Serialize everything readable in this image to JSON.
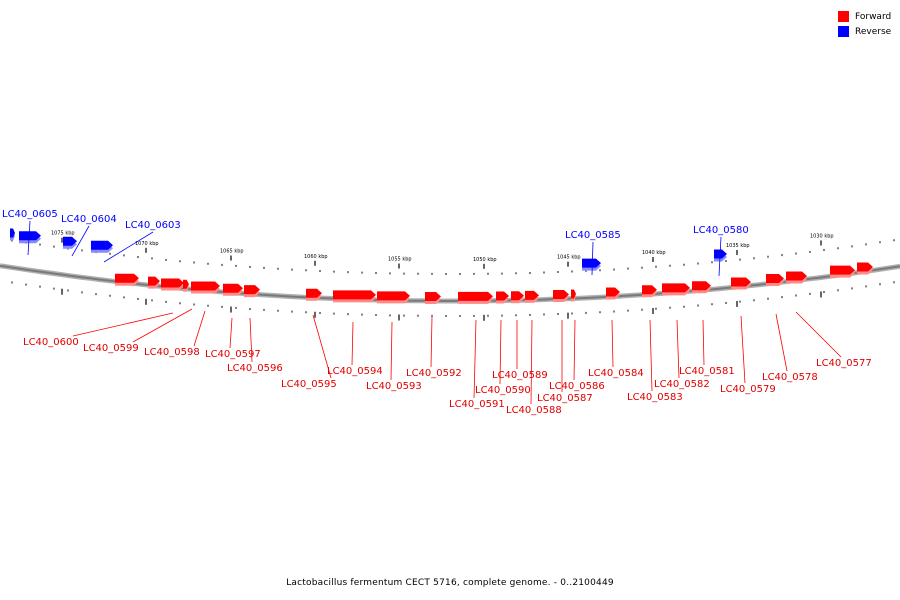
{
  "legend": {
    "forward": {
      "label": "Forward",
      "color": "#ff0000"
    },
    "reverse": {
      "label": "Reverse",
      "color": "#0000ff"
    }
  },
  "caption": "Lactobacillus fermentum CECT 5716, complete genome. - 0..2100449",
  "scale": {
    "tick_labels": [
      "1075 kbp",
      "1070 kbp",
      "1065 kbp",
      "1060 kbp",
      "1055 kbp",
      "1050 kbp",
      "1045 kbp",
      "1040 kbp",
      "1035 kbp",
      "1030 kbp"
    ]
  },
  "genes": {
    "reverse": [
      "LC40_0605",
      "LC40_0604",
      "LC40_0603",
      "LC40_0585",
      "LC40_0580"
    ],
    "forward": [
      "LC40_0600",
      "LC40_0599",
      "LC40_0598",
      "LC40_0597",
      "LC40_0596",
      "LC40_0595",
      "LC40_0594",
      "LC40_0593",
      "LC40_0592",
      "LC40_0591",
      "LC40_0590",
      "LC40_0589",
      "LC40_0588",
      "LC40_0587",
      "LC40_0586",
      "LC40_0584",
      "LC40_0583",
      "LC40_0582",
      "LC40_0581",
      "LC40_0579",
      "LC40_0578",
      "LC40_0577"
    ]
  }
}
